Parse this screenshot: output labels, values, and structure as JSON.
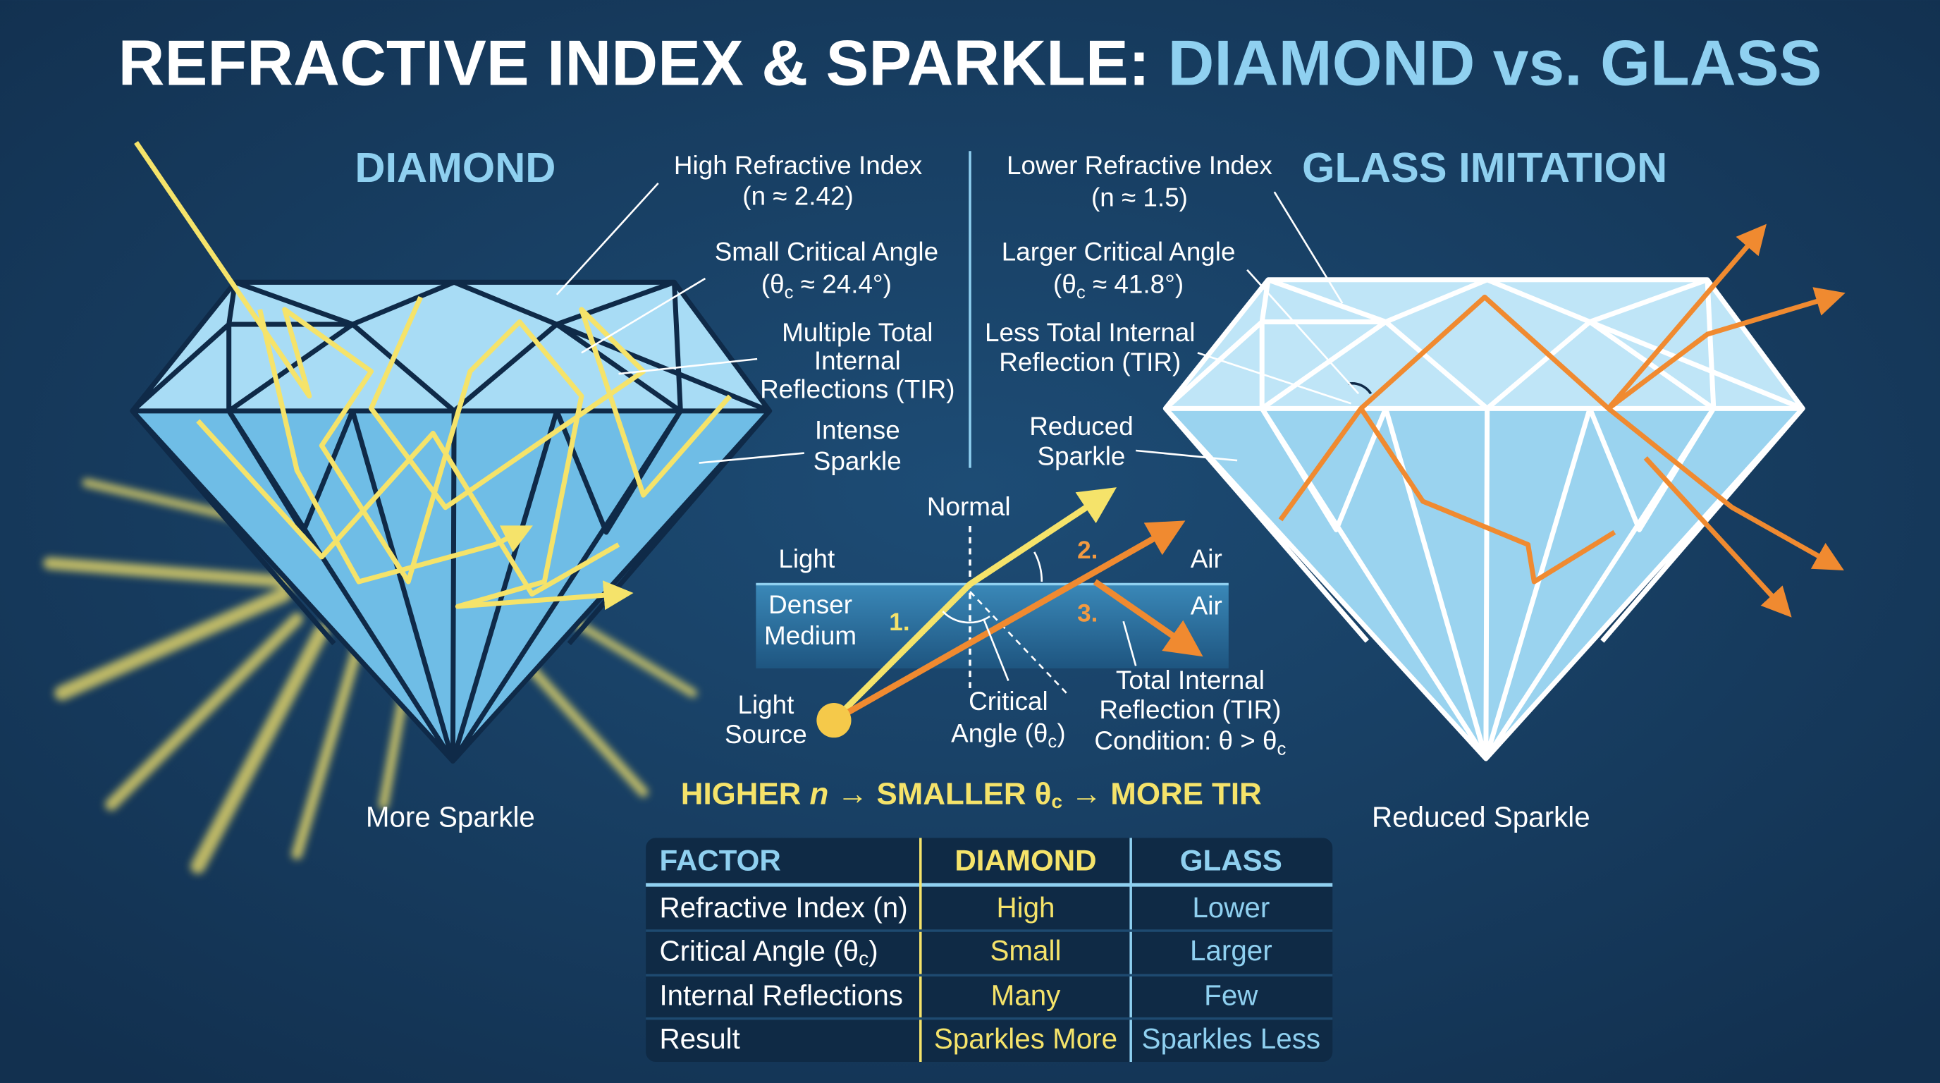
{
  "title": {
    "main": "REFRACTIVE INDEX & SPARKLE:",
    "highlight": "DIAMOND vs. GLASS"
  },
  "diamond": {
    "heading": "DIAMOND",
    "caption": "More Sparkle",
    "notes": [
      [
        "High Refractive Index",
        "(n ≈ 2.42)"
      ],
      [
        "Small Critical Angle",
        [
          "(θ",
          "c",
          " ≈ 24.4°)"
        ]
      ],
      [
        "Multiple Total",
        "Internal",
        "Reflections (TIR)"
      ],
      [
        "Intense",
        "Sparkle"
      ]
    ]
  },
  "glass": {
    "heading": "GLASS IMITATION",
    "caption": "Reduced Sparkle",
    "notes": [
      [
        "Lower Refractive Index",
        "(n ≈ 1.5)"
      ],
      [
        "Larger Critical Angle",
        [
          "(θ",
          "c",
          " ≈ 41.8°)"
        ]
      ],
      [
        "Less Total Internal",
        "Reflection (TIR)"
      ],
      [
        "Reduced",
        "Sparkle"
      ]
    ]
  },
  "diagram": {
    "normal": "Normal",
    "light": "Light",
    "medium": [
      "Denser",
      "Medium"
    ],
    "air_top": "Air",
    "air_bottom": "Air",
    "steps": [
      "1.",
      "2.",
      "3."
    ],
    "source": [
      "Light",
      "Source"
    ],
    "critical": [
      "Critical",
      [
        "Angle (θ",
        "c",
        ")"
      ]
    ],
    "tir": [
      "Total Internal",
      "Reflection (TIR)",
      [
        "Condition: θ > θ",
        "c"
      ]
    ]
  },
  "formula": [
    "HIGHER ",
    "n",
    " → SMALLER θ",
    "c",
    " → MORE TIR"
  ],
  "table": {
    "header": [
      "FACTOR",
      "DIAMOND",
      "GLASS"
    ],
    "rows": [
      [
        "Refractive Index (n)",
        "High",
        "Lower"
      ],
      [
        [
          "Critical Angle (θ",
          "c",
          ")"
        ],
        "Small",
        "Larger"
      ],
      [
        "Internal Reflections",
        "Many",
        "Few"
      ],
      [
        "Result",
        "Sparkles More",
        "Sparkles Less"
      ]
    ]
  }
}
